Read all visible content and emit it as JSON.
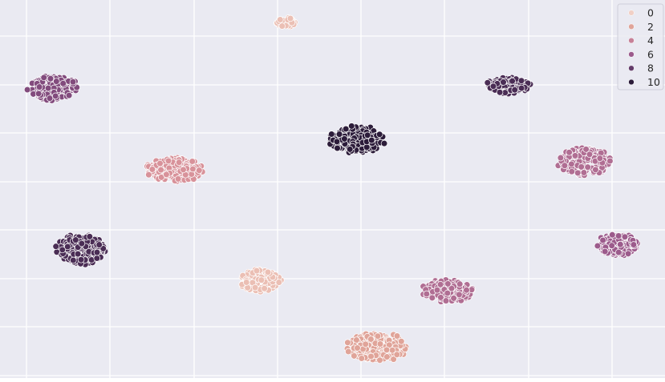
{
  "chart_data": {
    "type": "scatter",
    "title": "",
    "xlabel": "",
    "ylabel": "",
    "xlim": [
      0,
      829
    ],
    "ylim": [
      472,
      0
    ],
    "grid": true,
    "style": "seaborn-darkgrid",
    "legend": {
      "placement": "top-right",
      "entries": [
        {
          "label": "0",
          "color": "#f1d0c6"
        },
        {
          "label": "2",
          "color": "#e0a499"
        },
        {
          "label": "4",
          "color": "#c78198"
        },
        {
          "label": "6",
          "color": "#9c5b8c"
        },
        {
          "label": "8",
          "color": "#643c6a"
        },
        {
          "label": "10",
          "color": "#2c1c3a"
        }
      ]
    },
    "palette": {
      "0": "#f1d0c6",
      "1": "#ebbfb4",
      "2": "#e0a499",
      "3": "#d8929a",
      "4": "#c78198",
      "5": "#b06e93",
      "6": "#9c5b8c",
      "7": "#824b7d",
      "8": "#643c6a",
      "9": "#4a2d55",
      "10": "#2c1c3a"
    },
    "x_ticks": [
      33,
      137,
      242,
      346,
      450,
      554,
      659,
      763
    ],
    "y_ticks": [
      45,
      106,
      166,
      227,
      287,
      348,
      408,
      469
    ],
    "series": [
      {
        "hue": 1,
        "center": [
          356,
          28
        ],
        "spread": [
          14,
          6
        ],
        "n": 40
      },
      {
        "hue": 7,
        "center": [
          66,
          110
        ],
        "spread": [
          31,
          16
        ],
        "n": 200
      },
      {
        "hue": 9,
        "center": [
          634,
          107
        ],
        "spread": [
          29,
          10
        ],
        "n": 140
      },
      {
        "hue": 10,
        "center": [
          445,
          174
        ],
        "spread": [
          36,
          17
        ],
        "n": 220
      },
      {
        "hue": 3,
        "center": [
          217,
          212
        ],
        "spread": [
          36,
          15
        ],
        "n": 200
      },
      {
        "hue": 5,
        "center": [
          729,
          202
        ],
        "spread": [
          34,
          17
        ],
        "n": 200
      },
      {
        "hue": 9,
        "center": [
          101,
          311
        ],
        "spread": [
          31,
          19
        ],
        "n": 200
      },
      {
        "hue": 6,
        "center": [
          770,
          306
        ],
        "spread": [
          26,
          14
        ],
        "n": 160
      },
      {
        "hue": 1,
        "center": [
          324,
          350
        ],
        "spread": [
          27,
          14
        ],
        "n": 160
      },
      {
        "hue": 5,
        "center": [
          558,
          363
        ],
        "spread": [
          32,
          15
        ],
        "n": 180
      },
      {
        "hue": 2,
        "center": [
          470,
          433
        ],
        "spread": [
          38,
          18
        ],
        "n": 220
      }
    ]
  }
}
